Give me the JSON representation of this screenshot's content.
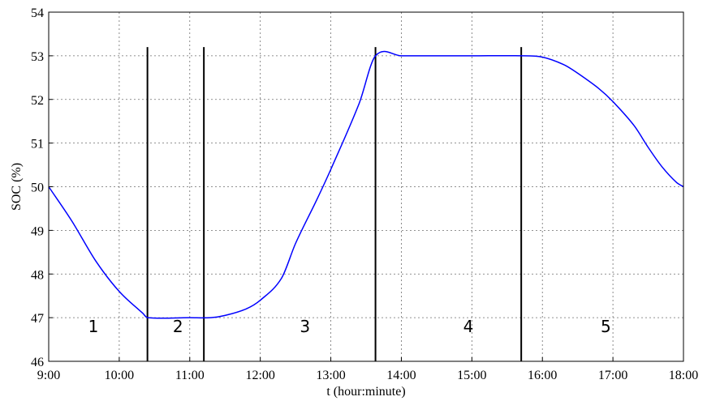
{
  "chart_data": {
    "type": "line",
    "title": "",
    "xlabel": "t (hour:minute)",
    "ylabel": "SOC (%)",
    "xlim": [
      "9:00",
      "18:00"
    ],
    "ylim": [
      46,
      54
    ],
    "x_ticks": [
      "9:00",
      "10:00",
      "11:00",
      "12:00",
      "13:00",
      "14:00",
      "15:00",
      "16:00",
      "17:00",
      "18:00"
    ],
    "y_ticks": [
      46,
      47,
      48,
      49,
      50,
      51,
      52,
      53,
      54
    ],
    "grid": true,
    "series": [
      {
        "color": "#0000ff",
        "x": [
          "9:00",
          "9:20",
          "9:40",
          "10:00",
          "10:20",
          "10:24",
          "11:00",
          "11:18",
          "11:30",
          "11:48",
          "12:00",
          "12:18",
          "12:30",
          "12:48",
          "13:00",
          "13:24",
          "13:38",
          "14:00",
          "15:00",
          "15:42",
          "16:00",
          "16:18",
          "16:30",
          "16:48",
          "17:00",
          "17:18",
          "17:30",
          "17:42",
          "17:54",
          "18:00"
        ],
        "y": [
          50.0,
          49.2,
          48.3,
          47.6,
          47.1,
          47.0,
          47.0,
          47.0,
          47.05,
          47.2,
          47.4,
          47.9,
          48.7,
          49.7,
          50.4,
          51.9,
          53.0,
          53.0,
          53.0,
          53.0,
          52.97,
          52.8,
          52.6,
          52.25,
          51.95,
          51.4,
          50.9,
          50.45,
          50.1,
          50.0
        ]
      }
    ],
    "vertical_lines": {
      "color": "#000000",
      "x": [
        "10:24",
        "11:12",
        "13:38",
        "15:42"
      ],
      "y_top": 53.2
    },
    "region_labels": [
      {
        "text": "1",
        "x": "9:38",
        "y": 46.8
      },
      {
        "text": "2",
        "x": "10:50",
        "y": 46.8
      },
      {
        "text": "3",
        "x": "12:38",
        "y": 46.8
      },
      {
        "text": "4",
        "x": "14:57",
        "y": 46.8
      },
      {
        "text": "5",
        "x": "16:54",
        "y": 46.8
      }
    ]
  }
}
